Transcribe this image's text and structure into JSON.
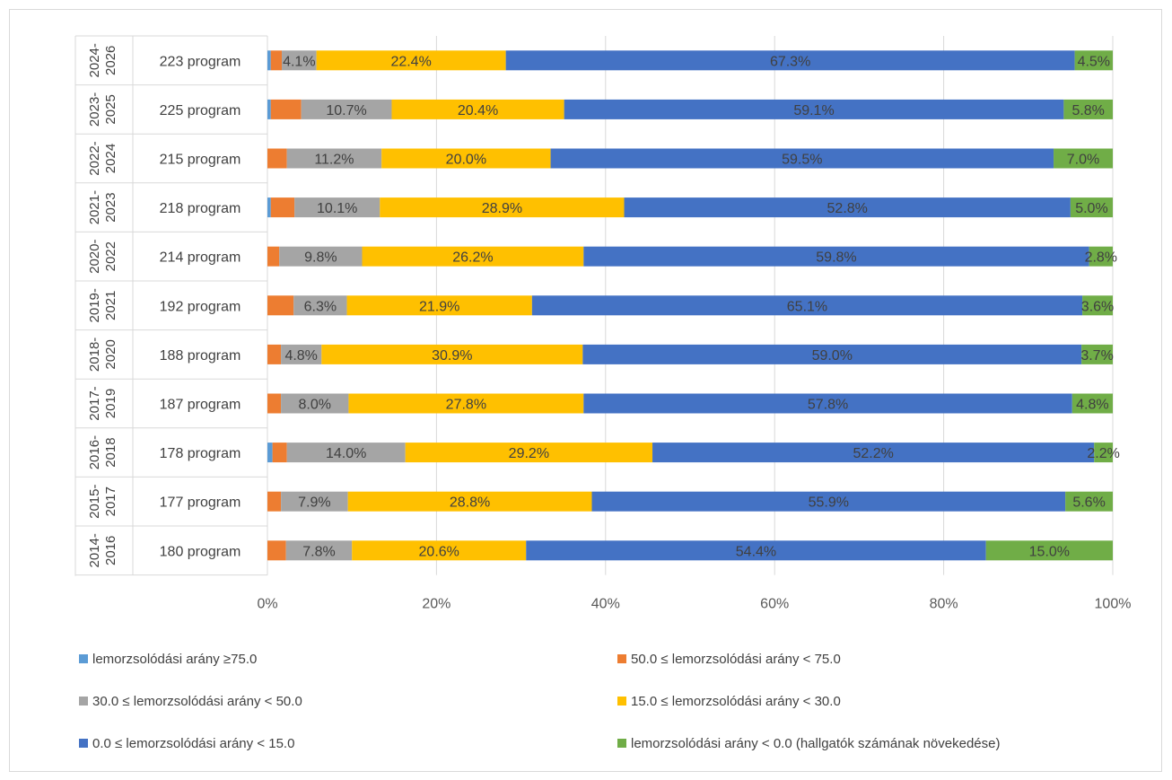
{
  "chart_data": {
    "type": "bar",
    "orientation": "horizontal",
    "stacked": "percent",
    "grid": true,
    "legend_position": "bottom",
    "xlim": [
      0,
      100
    ],
    "x_ticks": [
      "0%",
      "20%",
      "40%",
      "60%",
      "80%",
      "100%"
    ],
    "categories": [
      {
        "period": "2024-2026",
        "count": "223 program"
      },
      {
        "period": "2023-2025",
        "count": "225 program"
      },
      {
        "period": "2022-2024",
        "count": "215 program"
      },
      {
        "period": "2021-2023",
        "count": "218 program"
      },
      {
        "period": "2020-2022",
        "count": "214 program"
      },
      {
        "period": "2019-2021",
        "count": "192 program"
      },
      {
        "period": "2018-2020",
        "count": "188 program"
      },
      {
        "period": "2017-2019",
        "count": "187 program"
      },
      {
        "period": "2016-2018",
        "count": "178 program"
      },
      {
        "period": "2015-2017",
        "count": "177 program"
      },
      {
        "period": "2014-2016",
        "count": "180 program"
      }
    ],
    "series": [
      {
        "name": "lemorzsolódási arány ≥75.0",
        "color": "#5B9BD5",
        "values": [
          0.4,
          0.4,
          0,
          0.4,
          0,
          0,
          0,
          0,
          0.6,
          0,
          0
        ],
        "labels": [
          "",
          "",
          "",
          "",
          "",
          "",
          "",
          "",
          "",
          "",
          ""
        ]
      },
      {
        "name": "50.0 ≤ lemorzsolódási arány < 75.0",
        "color": "#ED7D31",
        "values": [
          1.3,
          3.6,
          2.3,
          2.8,
          1.4,
          3.1,
          1.6,
          1.6,
          1.7,
          1.6,
          2.2
        ],
        "labels": [
          "",
          "",
          "",
          "",
          "",
          "",
          "",
          "",
          "",
          "",
          ""
        ]
      },
      {
        "name": "30.0 ≤ lemorzsolódási arány < 50.0",
        "color": "#A5A5A5",
        "values": [
          4.1,
          10.7,
          11.2,
          10.1,
          9.8,
          6.3,
          4.8,
          8.0,
          14.0,
          7.9,
          7.8
        ],
        "labels": [
          "4.1%",
          "10.7%",
          "11.2%",
          "10.1%",
          "9.8%",
          "6.3%",
          "4.8%",
          "8.0%",
          "14.0%",
          "7.9%",
          "7.8%"
        ]
      },
      {
        "name": "15.0 ≤ lemorzsolódási arány < 30.0",
        "color": "#FFC000",
        "values": [
          22.4,
          20.4,
          20.0,
          28.9,
          26.2,
          21.9,
          30.9,
          27.8,
          29.2,
          28.8,
          20.6
        ],
        "labels": [
          "22.4%",
          "20.4%",
          "20.0%",
          "28.9%",
          "26.2%",
          "21.9%",
          "30.9%",
          "27.8%",
          "29.2%",
          "28.8%",
          "20.6%"
        ]
      },
      {
        "name": "0.0 ≤ lemorzsolódási arány < 15.0",
        "color": "#4472C4",
        "values": [
          67.3,
          59.1,
          59.5,
          52.8,
          59.8,
          65.1,
          59.0,
          57.8,
          52.2,
          55.9,
          54.4
        ],
        "labels": [
          "67.3%",
          "59.1%",
          "59.5%",
          "52.8%",
          "59.8%",
          "65.1%",
          "59.0%",
          "57.8%",
          "52.2%",
          "55.9%",
          "54.4%"
        ]
      },
      {
        "name": "lemorzsolódási arány  < 0.0 (hallgatók számának növekedése)",
        "color": "#70AD47",
        "values": [
          4.5,
          5.8,
          7.0,
          5.0,
          2.8,
          3.6,
          3.7,
          4.8,
          2.2,
          5.6,
          15.0
        ],
        "labels": [
          "4.5%",
          "5.8%",
          "7.0%",
          "5.0%",
          "2.8%",
          "3.6%",
          "3.7%",
          "4.8%",
          "2.2%",
          "5.6%",
          "15.0%"
        ]
      }
    ]
  }
}
